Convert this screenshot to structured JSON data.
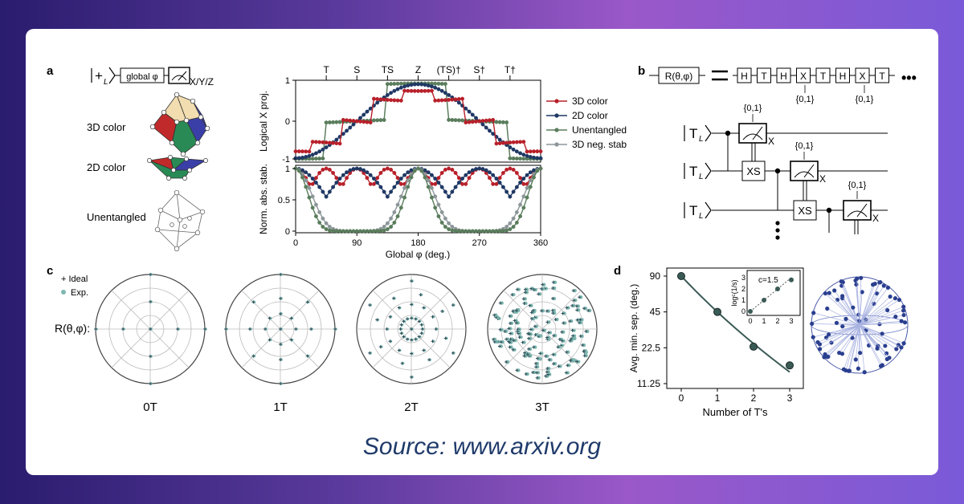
{
  "source": "Source: www.arxiv.org",
  "panel_labels": {
    "a": "a",
    "b": "b",
    "c": "c",
    "d": "d"
  },
  "colors": {
    "red": "#b8202a",
    "navy": "#1f3864",
    "green": "#5a7d5c",
    "gray": "#8c9699",
    "teal": "#7fb7b0",
    "point": "#2f4f5a",
    "sphere": "#2a3f8f"
  },
  "panel_a": {
    "circuit": {
      "ket": "+",
      "ket_sub": "L",
      "gate": "global φ",
      "meas_label": "X/Y/Z"
    },
    "shapes": [
      "3D color",
      "2D color",
      "Unentangled"
    ],
    "top_ticks": [
      "T",
      "S",
      "TS",
      "Z",
      "(TS)†",
      "S†",
      "T†"
    ],
    "legend": [
      "3D color",
      "2D color",
      "Unentangled",
      "3D neg. stab"
    ],
    "ylabel_top": "Logical X proj.",
    "ylabel_bottom": "Norm. abs. stab.",
    "xlabel": "Global φ (deg.)",
    "yticks_top": [
      "1",
      "0",
      "-1"
    ],
    "yticks_bottom": [
      "1",
      "0.5",
      "0"
    ],
    "xticks": [
      "0",
      "90",
      "180",
      "270",
      "360"
    ]
  },
  "panel_b": {
    "lhs": "R(θ,φ)",
    "sequence": [
      "H",
      "T",
      "H",
      "X",
      "T",
      "H",
      "X",
      "T"
    ],
    "sequence_notes": [
      "{0,1}",
      "{0,1}"
    ],
    "ket": "T",
    "ket_sub": "L",
    "xs": "XS",
    "meas_sub": "X",
    "note": "{0,1}"
  },
  "panel_c": {
    "legend": [
      "+ Ideal",
      "Exp."
    ],
    "ylabel": "R(θ,φ):",
    "labels": [
      "0T",
      "1T",
      "2T",
      "3T"
    ]
  },
  "chart_data": [
    {
      "type": "line",
      "x": [
        0,
        1,
        2,
        3
      ],
      "values": [
        90,
        45,
        23,
        16
      ],
      "xlabel": "Number of T's",
      "ylabel": "Avg. min. sep. (deg.)",
      "yticks": [
        "90",
        "45",
        "22.5",
        "11.25"
      ],
      "xticks": [
        "0",
        "1",
        "2",
        "3"
      ],
      "yscale": "log",
      "grid": false
    },
    {
      "type": "line",
      "x": [
        0,
        1,
        2,
        3
      ],
      "values": [
        0,
        1,
        2,
        2.8
      ],
      "ylabel": "logᶜ(1/s)",
      "annotation": "c=1.5",
      "yticks": [
        "0",
        "1",
        "2",
        "3"
      ],
      "xticks": [
        "0",
        "1",
        "2",
        "3"
      ]
    }
  ]
}
